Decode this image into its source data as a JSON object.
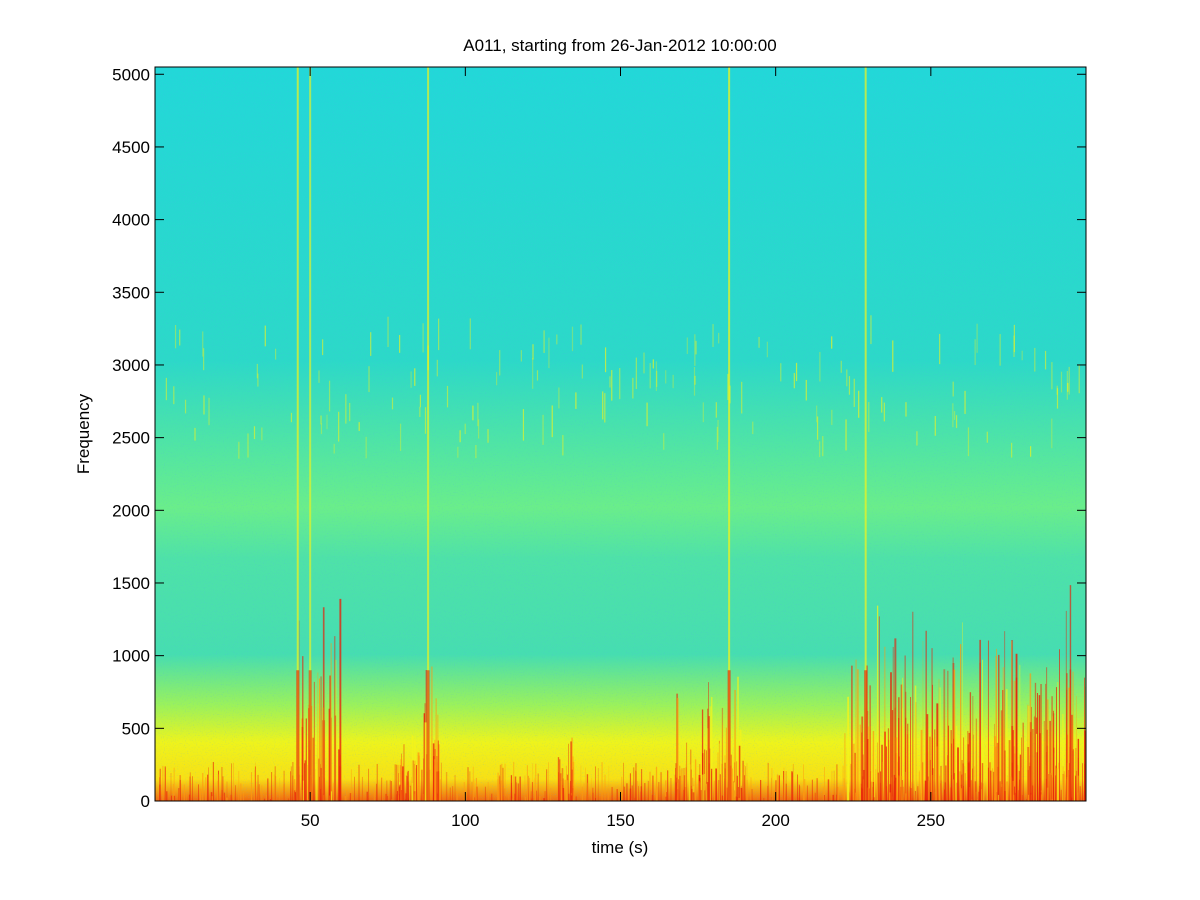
{
  "chart_data": {
    "type": "heatmap",
    "title": "A011, starting from 26-Jan-2012 10:00:00",
    "xlabel": "time (s)",
    "ylabel": "Frequency",
    "xlim": [
      0,
      300
    ],
    "ylim": [
      0,
      5050
    ],
    "x_ticks": [
      50,
      100,
      150,
      200,
      250
    ],
    "x_tick_labels": [
      "50",
      "100",
      "150",
      "200",
      "250"
    ],
    "y_ticks": [
      0,
      500,
      1000,
      1500,
      2000,
      2500,
      3000,
      3500,
      4000,
      4500,
      5000
    ],
    "y_tick_labels": [
      "0",
      "500",
      "1000",
      "1500",
      "2000",
      "2500",
      "3000",
      "3500",
      "4000",
      "4500",
      "5000"
    ],
    "colormap": "jet",
    "grid": false,
    "background_band": {
      "freq_range": [
        0,
        5050
      ],
      "description": "cyan at high frequencies, green to 2500-3500, yellow below 800, red near 0"
    },
    "broadband_events": [
      {
        "time": 46,
        "max_freq": 5050,
        "intensity": 0.9
      },
      {
        "time": 50,
        "max_freq": 5050,
        "intensity": 0.8
      },
      {
        "time": 88,
        "max_freq": 5050,
        "intensity": 0.85
      },
      {
        "time": 185,
        "max_freq": 5050,
        "intensity": 0.95
      },
      {
        "time": 229,
        "max_freq": 5050,
        "intensity": 0.9
      }
    ],
    "low_freq_bursts": [
      {
        "t_start": 45,
        "t_end": 60,
        "max_freq": 1500
      },
      {
        "t_start": 78,
        "t_end": 92,
        "max_freq": 1000
      },
      {
        "t_start": 130,
        "t_end": 136,
        "max_freq": 600
      },
      {
        "t_start": 168,
        "t_end": 190,
        "max_freq": 900
      },
      {
        "t_start": 222,
        "t_end": 300,
        "max_freq": 1500
      }
    ]
  },
  "colors": {
    "cyan": "#22d8d0",
    "teal": "#2ad6b8",
    "green": "#6ff07a",
    "yellow": "#f4f41a",
    "orange": "#ff9a10",
    "red": "#e8200a",
    "axis": "#000000"
  }
}
